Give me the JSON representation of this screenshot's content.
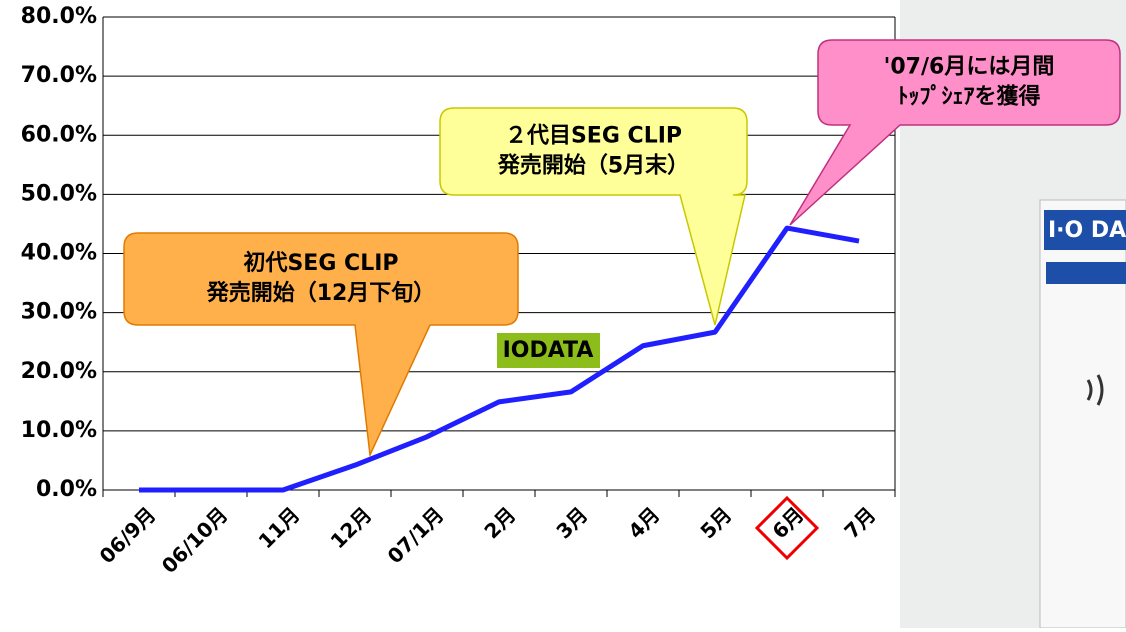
{
  "chart_data": {
    "type": "line",
    "categories": [
      "06/9月",
      "06/10月",
      "11月",
      "12月",
      "07/1月",
      "2月",
      "3月",
      "4月",
      "5月",
      "6月",
      "7月"
    ],
    "series": [
      {
        "name": "IODATA",
        "color": "#1f1fff",
        "values": [
          0,
          0,
          0,
          4.2,
          9.0,
          14.9,
          16.6,
          24.4,
          26.7,
          44.3,
          42.1
        ]
      }
    ],
    "ylim": [
      0,
      80
    ],
    "yticks": [
      {
        "value": 0,
        "label": "0.0%"
      },
      {
        "value": 10,
        "label": "10.0%"
      },
      {
        "value": 20,
        "label": "20.0%"
      },
      {
        "value": 30,
        "label": "30.0%"
      },
      {
        "value": 40,
        "label": "40.0%"
      },
      {
        "value": 50,
        "label": "50.0%"
      },
      {
        "value": 60,
        "label": "60.0%"
      },
      {
        "value": 70,
        "label": "70.0%"
      },
      {
        "value": 80,
        "label": "80.0%"
      }
    ],
    "grid": true,
    "annotations": [
      {
        "lines": [
          "初代SEG CLIP",
          "発売開始（12月下旬）"
        ]
      },
      {
        "lines": [
          "２代目SEG CLIP",
          "発売開始（5月末）"
        ]
      },
      {
        "lines": [
          "'07/6月には月間",
          "ﾄｯﾌﾟｼｪｱを獲得"
        ]
      },
      {
        "lines": [
          "I·O DA"
        ]
      }
    ]
  }
}
